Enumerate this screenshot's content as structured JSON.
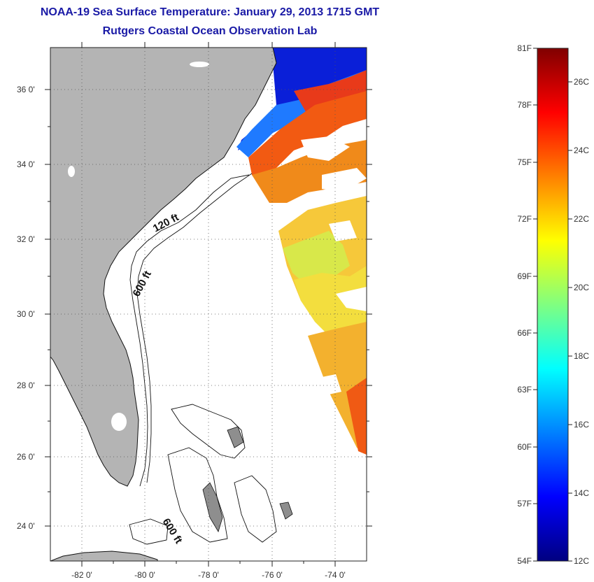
{
  "header": {
    "title": "NOAA-19 Sea Surface Temperature:  January 29, 2013 1715 GMT",
    "subtitle": "Rutgers Coastal Ocean Observation Lab"
  },
  "map": {
    "lon_range": [
      -83,
      -73
    ],
    "lat_range": [
      23,
      37
    ],
    "lon_ticks": [
      "-82 0'",
      "-80 0'",
      "-78 0'",
      "-76 0'",
      "-74 0'"
    ],
    "lat_ticks": [
      "36 0'",
      "34 0'",
      "32 0'",
      "30 0'",
      "28 0'",
      "26 0'",
      "24 0'"
    ],
    "grid": "dotted",
    "land_color": "#b4b4b4",
    "contours": [
      {
        "label": "120 ft"
      },
      {
        "label": "600 ft"
      },
      {
        "label": "600 ft"
      }
    ]
  },
  "colorbar": {
    "fahrenheit_labels": [
      "81F",
      "78F",
      "75F",
      "72F",
      "69F",
      "66F",
      "63F",
      "60F",
      "57F",
      "54F"
    ],
    "celsius_labels": [
      "26C",
      "24C",
      "22C",
      "20C",
      "18C",
      "16C",
      "14C",
      "12C"
    ],
    "range_f": [
      54,
      81
    ],
    "range_c": [
      12,
      27
    ],
    "colors_high_to_low": [
      "#800000",
      "#ff0000",
      "#ff8000",
      "#ffff00",
      "#80ff80",
      "#00ffff",
      "#0080ff",
      "#0000ff",
      "#000080"
    ]
  }
}
